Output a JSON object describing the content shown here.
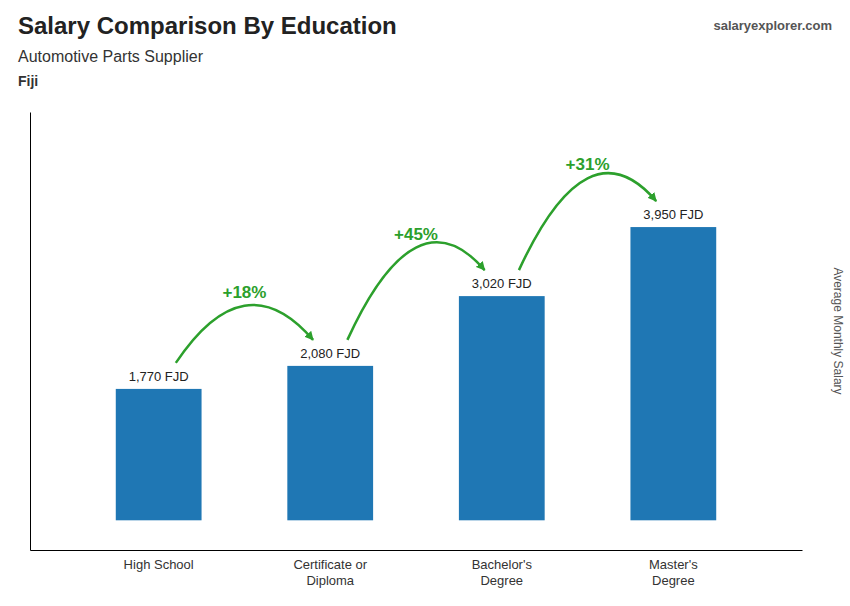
{
  "chart_data": {
    "type": "bar",
    "title": "Salary Comparison By Education",
    "subtitle": "Automotive Parts Supplier",
    "annotations": [
      "Fiji",
      "salaryexplorer.com"
    ],
    "ylabel": "Average Monthly Salary",
    "categories": [
      "High School",
      "Certificate or\nDiploma",
      "Bachelor's\nDegree",
      "Master's\nDegree"
    ],
    "values": [
      1770,
      2080,
      3020,
      3950
    ],
    "value_labels": [
      "1,770 FJD",
      "2,080 FJD",
      "3,020 FJD",
      "3,950 FJD"
    ],
    "data_labels": true,
    "changes": {
      "values": [
        18,
        45,
        31
      ],
      "value_labels": [
        "+18%",
        "+45%",
        "+31%"
      ]
    },
    "ylim": [
      -400,
      5500
    ],
    "grid": false,
    "tick_labels": "x"
  }
}
